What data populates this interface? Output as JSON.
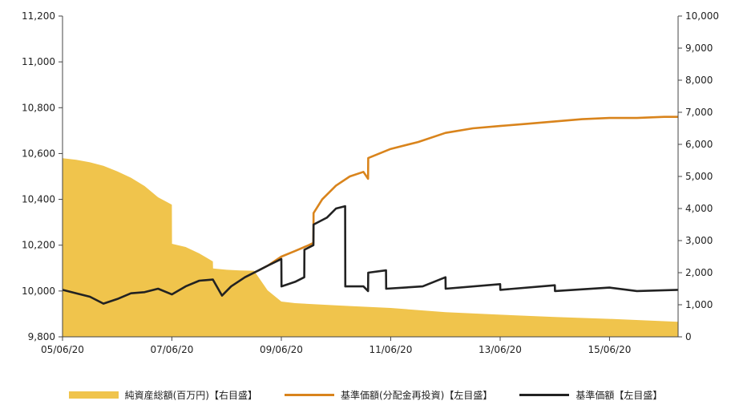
{
  "chart_data": {
    "type": "line",
    "title": "",
    "x_axis": {
      "start": "2005-06-20",
      "end": "2016-09-20",
      "tick_labels": [
        "05/06/20",
        "07/06/20",
        "09/06/20",
        "11/06/20",
        "13/06/20",
        "15/06/20"
      ],
      "tick_dates": [
        "2005-06-20",
        "2007-06-20",
        "2009-06-20",
        "2011-06-20",
        "2013-06-20",
        "2015-06-20"
      ]
    },
    "left_axis": {
      "min": 9800,
      "max": 11200,
      "ticks": [
        "9,800",
        "10,000",
        "10,200",
        "10,400",
        "10,600",
        "10,800",
        "11,000",
        "11,200"
      ]
    },
    "right_axis": {
      "min": 0,
      "max": 10000,
      "ticks": [
        "0",
        "1,000",
        "2,000",
        "3,000",
        "4,000",
        "5,000",
        "6,000",
        "7,000",
        "8,000",
        "9,000",
        "10,000"
      ]
    },
    "series": [
      {
        "name": "純資産総額(百万円)【右目盛】",
        "type": "area",
        "axis": "right",
        "color": "#f0c44c",
        "points": [
          [
            "2005-06-20",
            5570
          ],
          [
            "2005-09-20",
            5520
          ],
          [
            "2005-12-20",
            5440
          ],
          [
            "2006-03-20",
            5330
          ],
          [
            "2006-06-20",
            5160
          ],
          [
            "2006-09-20",
            4960
          ],
          [
            "2006-12-20",
            4700
          ],
          [
            "2007-03-20",
            4350
          ],
          [
            "2007-06-20",
            4120
          ],
          [
            "2007-06-21",
            2900
          ],
          [
            "2007-09-20",
            2800
          ],
          [
            "2007-12-20",
            2600
          ],
          [
            "2008-03-20",
            2350
          ],
          [
            "2008-03-21",
            2130
          ],
          [
            "2008-06-20",
            2090
          ],
          [
            "2008-09-20",
            2070
          ],
          [
            "2008-12-20",
            2060
          ],
          [
            "2009-03-20",
            1450
          ],
          [
            "2009-06-20",
            1100
          ],
          [
            "2009-09-20",
            1050
          ],
          [
            "2010-06-20",
            980
          ],
          [
            "2011-06-20",
            900
          ],
          [
            "2012-06-20",
            770
          ],
          [
            "2013-06-20",
            690
          ],
          [
            "2014-06-20",
            620
          ],
          [
            "2015-06-20",
            560
          ],
          [
            "2016-09-20",
            470
          ]
        ]
      },
      {
        "name": "基準価額(分配金再投資)【左目盛】",
        "type": "line",
        "axis": "left",
        "color": "#d9841c",
        "points": [
          [
            "2009-01-20",
            10090
          ],
          [
            "2009-03-20",
            10110
          ],
          [
            "2009-06-20",
            10150
          ],
          [
            "2009-09-20",
            10175
          ],
          [
            "2009-12-20",
            10200
          ],
          [
            "2010-01-20",
            10210
          ],
          [
            "2010-01-21",
            10340
          ],
          [
            "2010-03-20",
            10400
          ],
          [
            "2010-06-20",
            10460
          ],
          [
            "2010-09-20",
            10500
          ],
          [
            "2010-12-20",
            10520
          ],
          [
            "2011-01-20",
            10490
          ],
          [
            "2011-01-21",
            10580
          ],
          [
            "2011-06-20",
            10620
          ],
          [
            "2011-12-20",
            10650
          ],
          [
            "2012-06-20",
            10690
          ],
          [
            "2012-12-20",
            10710
          ],
          [
            "2013-06-20",
            10720
          ],
          [
            "2013-12-20",
            10730
          ],
          [
            "2014-06-20",
            10740
          ],
          [
            "2014-12-20",
            10750
          ],
          [
            "2015-06-20",
            10755
          ],
          [
            "2015-12-20",
            10755
          ],
          [
            "2016-06-20",
            10760
          ],
          [
            "2016-09-20",
            10760
          ]
        ]
      },
      {
        "name": "基準価額【左目盛】",
        "type": "line",
        "axis": "left",
        "color": "#222222",
        "points": [
          [
            "2005-06-20",
            10005
          ],
          [
            "2005-09-20",
            9990
          ],
          [
            "2005-12-20",
            9975
          ],
          [
            "2006-03-20",
            9945
          ],
          [
            "2006-06-20",
            9965
          ],
          [
            "2006-09-20",
            9990
          ],
          [
            "2006-12-20",
            9995
          ],
          [
            "2007-03-20",
            10010
          ],
          [
            "2007-06-20",
            9985
          ],
          [
            "2007-09-20",
            10020
          ],
          [
            "2007-12-20",
            10045
          ],
          [
            "2008-03-20",
            10050
          ],
          [
            "2008-05-20",
            9980
          ],
          [
            "2008-07-20",
            10020
          ],
          [
            "2008-10-20",
            10060
          ],
          [
            "2009-01-20",
            10090
          ],
          [
            "2009-03-20",
            10110
          ],
          [
            "2009-06-20",
            10140
          ],
          [
            "2009-06-21",
            10020
          ],
          [
            "2009-09-20",
            10040
          ],
          [
            "2009-11-20",
            10060
          ],
          [
            "2009-11-21",
            10180
          ],
          [
            "2010-01-20",
            10200
          ],
          [
            "2010-01-21",
            10290
          ],
          [
            "2010-04-20",
            10320
          ],
          [
            "2010-06-20",
            10360
          ],
          [
            "2010-08-20",
            10370
          ],
          [
            "2010-08-21",
            10020
          ],
          [
            "2010-12-20",
            10020
          ],
          [
            "2011-01-20",
            10000
          ],
          [
            "2011-01-21",
            10080
          ],
          [
            "2011-05-20",
            10090
          ],
          [
            "2011-05-21",
            10010
          ],
          [
            "2012-01-20",
            10020
          ],
          [
            "2012-06-20",
            10060
          ],
          [
            "2012-06-21",
            10010
          ],
          [
            "2013-06-20",
            10030
          ],
          [
            "2013-06-21",
            10005
          ],
          [
            "2014-06-20",
            10025
          ],
          [
            "2014-06-21",
            10000
          ],
          [
            "2015-06-20",
            10015
          ],
          [
            "2015-12-20",
            10000
          ],
          [
            "2016-09-20",
            10005
          ]
        ]
      }
    ],
    "legend_position": "bottom",
    "grid": false
  }
}
